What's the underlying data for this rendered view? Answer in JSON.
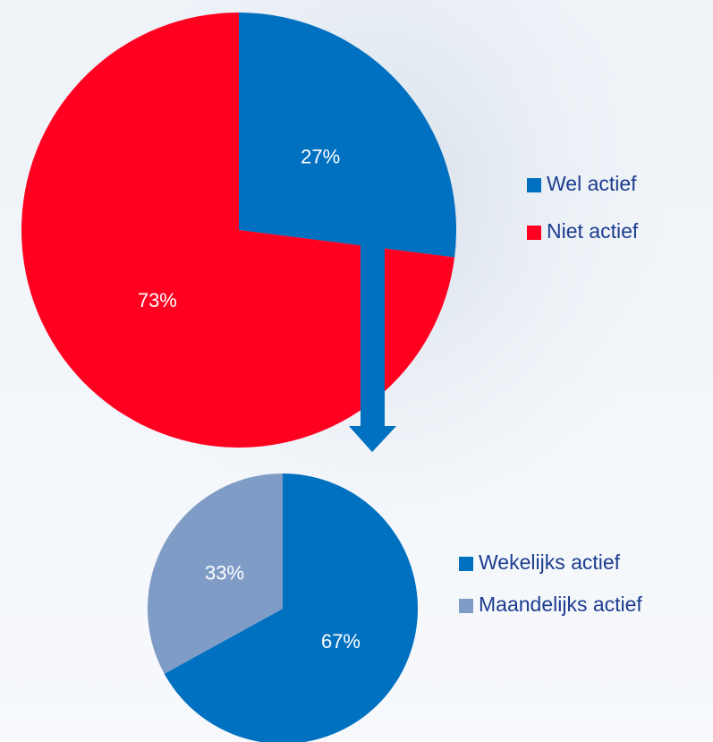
{
  "chart_data": [
    {
      "type": "pie",
      "categories": [
        "Wel actief",
        "Niet actief"
      ],
      "values": [
        27,
        73
      ],
      "value_labels": [
        "27%",
        "73%"
      ],
      "colors": [
        "#0070c0",
        "#ff0020"
      ]
    },
    {
      "type": "pie",
      "categories": [
        "Wekelijks actief",
        "Maandelijks actief"
      ],
      "values": [
        67,
        33
      ],
      "value_labels": [
        "67%",
        "33%"
      ],
      "colors": [
        "#0070c0",
        "#7f9cc6"
      ]
    }
  ]
}
